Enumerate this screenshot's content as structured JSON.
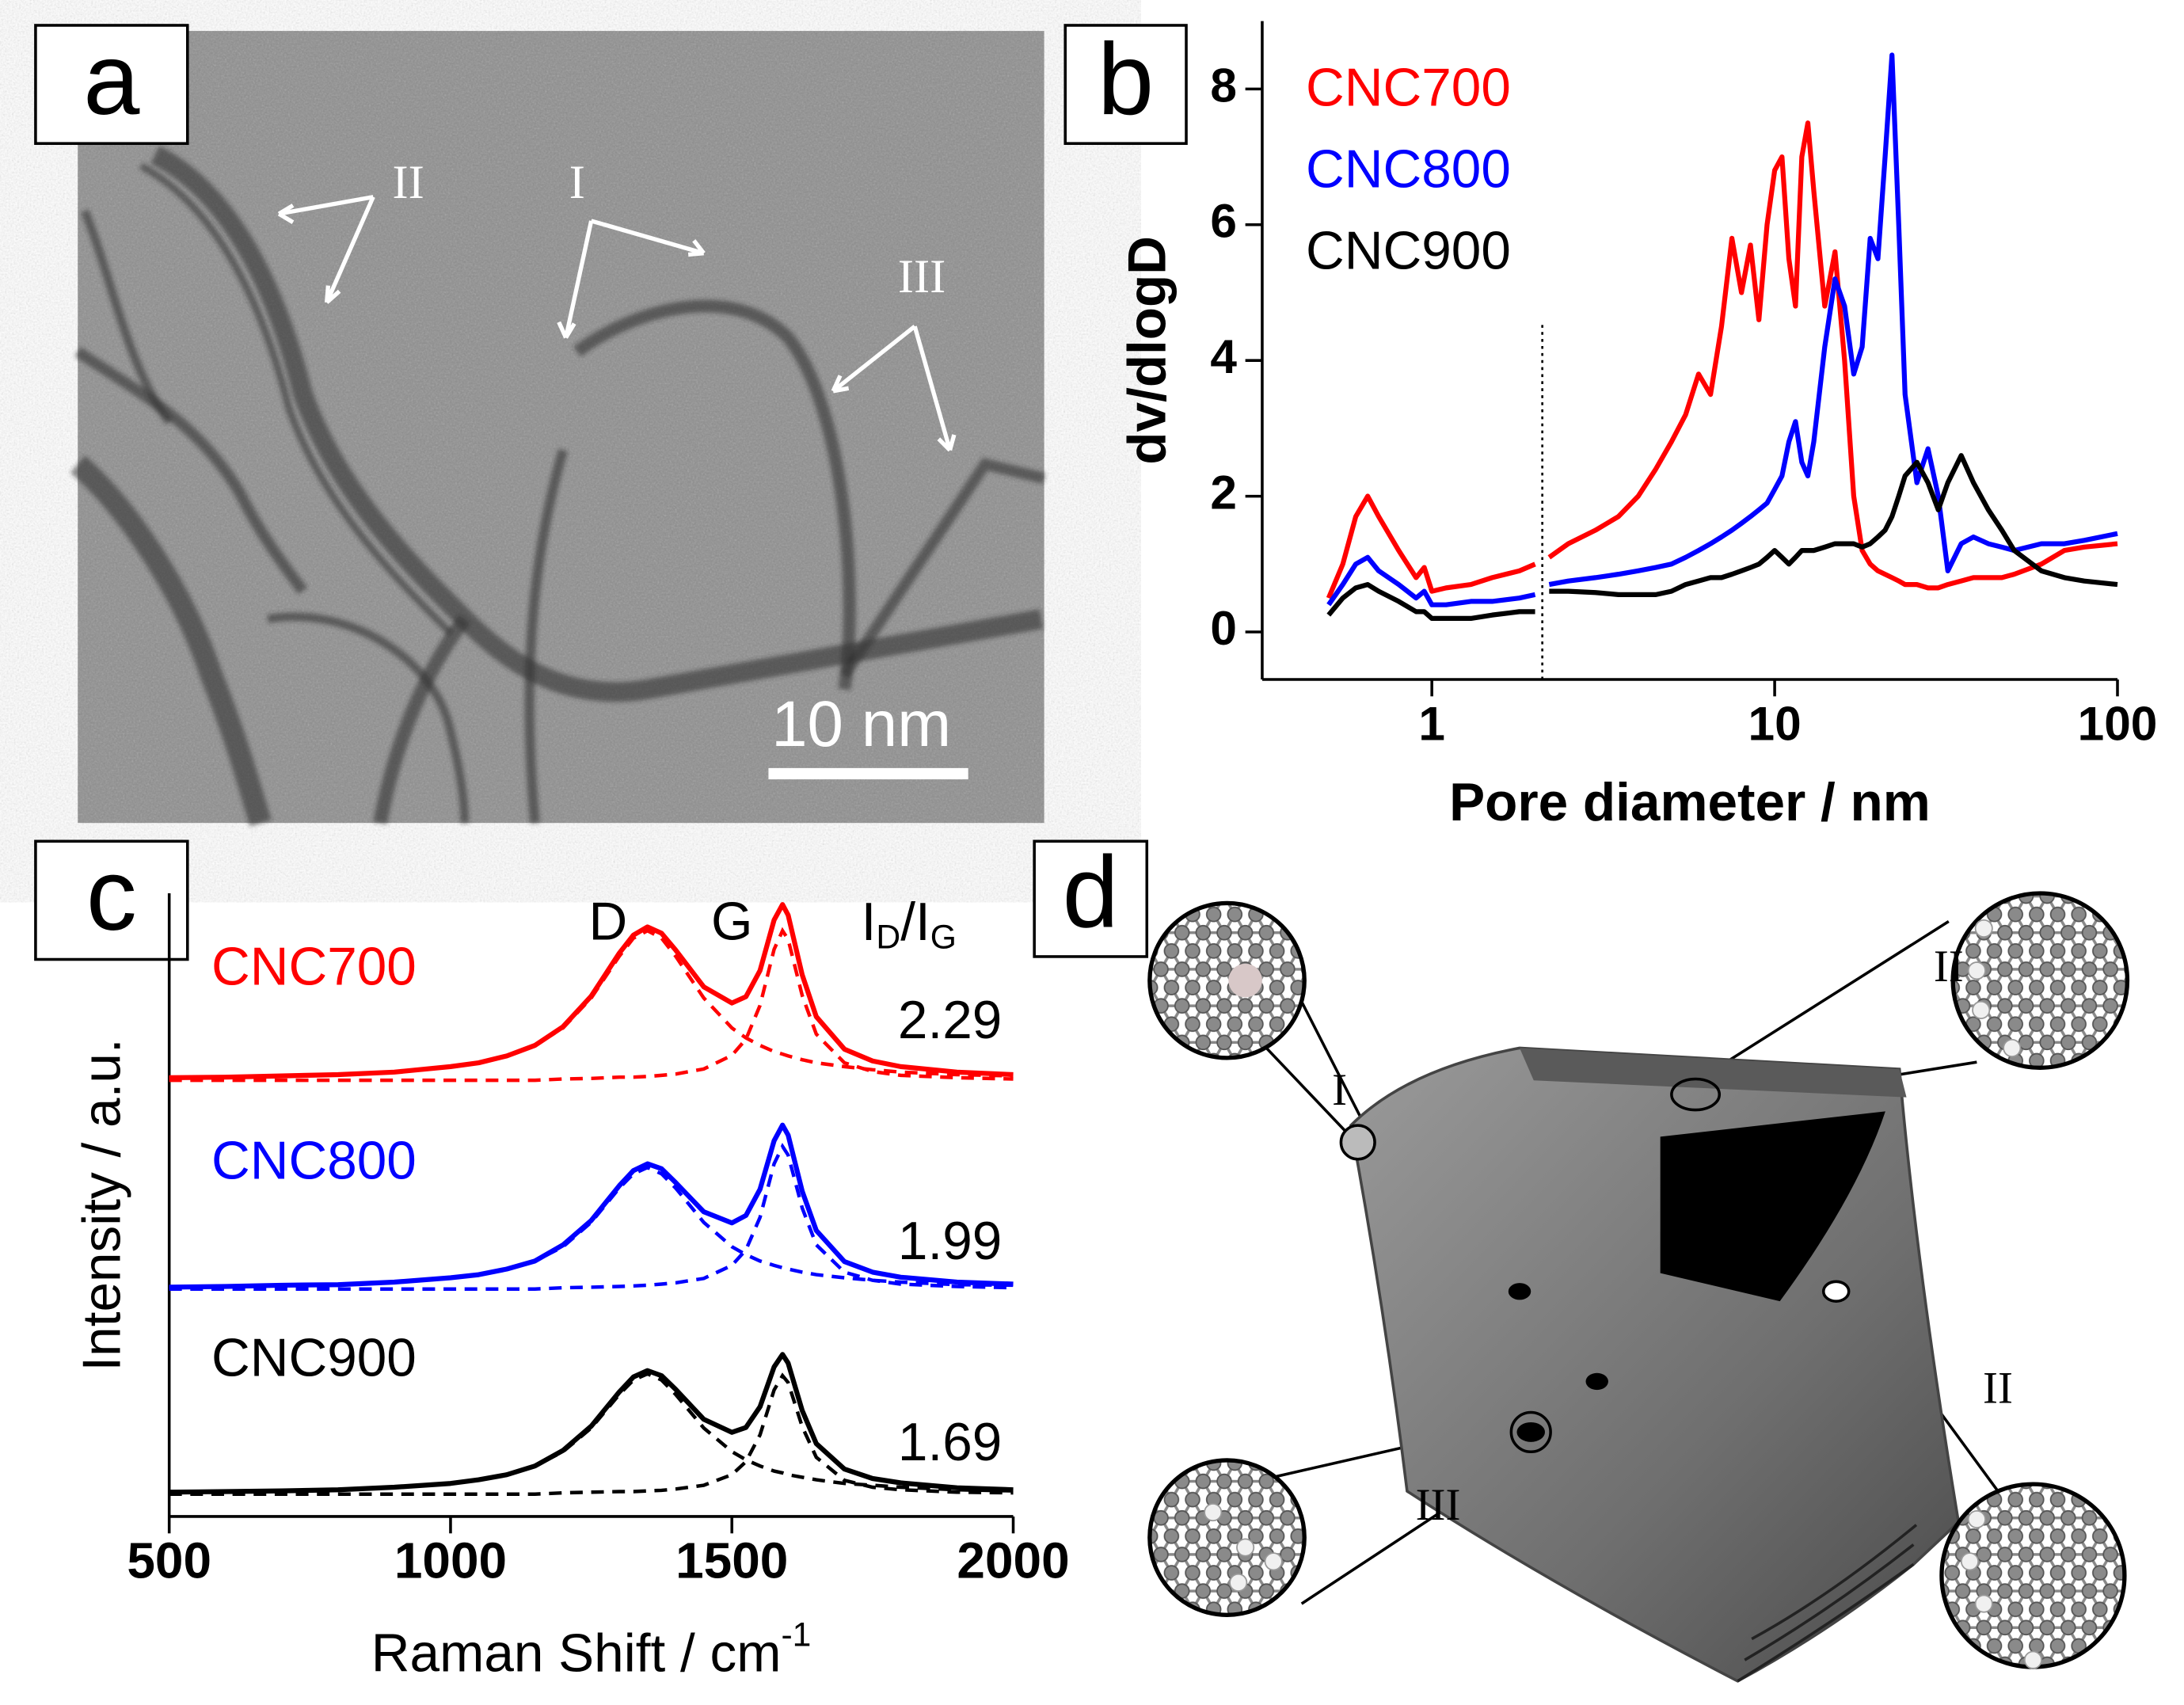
{
  "panel_a": {
    "label": "a",
    "annotations": [
      "II",
      "I",
      "III"
    ],
    "scale_bar": "10 nm"
  },
  "chart_data": [
    {
      "type": "line",
      "panel_label": "b",
      "xlabel": "Pore diameter / nm",
      "ylabel": "dv/dlogD",
      "xscale": "log",
      "xlim": [
        0.32,
        100
      ],
      "xticks": [
        1,
        10,
        100
      ],
      "ylim": [
        -0.7,
        9
      ],
      "yticks": [
        0,
        2,
        4,
        6,
        8
      ],
      "grid": false,
      "legend": "upper left",
      "reference_line": {
        "x": 2.1
      },
      "x": [
        0.5,
        0.55,
        0.6,
        0.65,
        0.7,
        0.8,
        0.9,
        0.95,
        1.0,
        1.1,
        1.3,
        1.5,
        1.8,
        2.0,
        2.1,
        2.2,
        2.5,
        3,
        3.5,
        4,
        4.5,
        5,
        5.5,
        6,
        6.5,
        7,
        7.5,
        8,
        8.5,
        9,
        9.5,
        10,
        10.5,
        11,
        11.5,
        12,
        12.5,
        13,
        14,
        15,
        16,
        17,
        18,
        19,
        20,
        21,
        22,
        23,
        24,
        26,
        28,
        30,
        32,
        35,
        38,
        42,
        46,
        50,
        60,
        70,
        80,
        100
      ],
      "series": [
        {
          "name": "CNC700",
          "color": "#ff0000",
          "values": [
            0.5,
            1.0,
            1.7,
            2.0,
            1.7,
            1.2,
            0.8,
            0.95,
            0.6,
            0.65,
            0.7,
            0.8,
            0.9,
            1.0,
            null,
            1.1,
            1.3,
            1.5,
            1.7,
            2.0,
            2.4,
            2.8,
            3.2,
            3.8,
            3.5,
            4.5,
            5.8,
            5.0,
            5.7,
            4.6,
            6.0,
            6.8,
            7.0,
            5.5,
            4.8,
            7.0,
            7.5,
            6.5,
            4.8,
            5.6,
            4.0,
            2.0,
            1.2,
            1.0,
            0.9,
            0.85,
            0.8,
            0.75,
            0.7,
            0.7,
            0.65,
            0.65,
            0.7,
            0.75,
            0.8,
            0.8,
            0.8,
            0.85,
            1.0,
            1.2,
            1.25,
            1.3
          ]
        },
        {
          "name": "CNC800",
          "color": "#0000ff",
          "values": [
            0.4,
            0.7,
            1.0,
            1.1,
            0.9,
            0.7,
            0.5,
            0.6,
            0.4,
            0.4,
            0.45,
            0.45,
            0.5,
            0.55,
            null,
            0.7,
            0.75,
            0.8,
            0.85,
            0.9,
            0.95,
            1.0,
            1.1,
            1.2,
            1.3,
            1.4,
            1.5,
            1.6,
            1.7,
            1.8,
            1.9,
            2.1,
            2.3,
            2.8,
            3.1,
            2.5,
            2.3,
            2.8,
            4.2,
            5.2,
            4.8,
            3.8,
            4.2,
            5.8,
            5.5,
            7.0,
            8.5,
            6.0,
            3.5,
            2.2,
            2.7,
            2.0,
            0.9,
            1.3,
            1.4,
            1.3,
            1.25,
            1.2,
            1.3,
            1.3,
            1.35,
            1.45
          ]
        },
        {
          "name": "CNC900",
          "color": "#000000",
          "values": [
            0.25,
            0.5,
            0.65,
            0.7,
            0.6,
            0.45,
            0.3,
            0.3,
            0.2,
            0.2,
            0.2,
            0.25,
            0.3,
            0.3,
            null,
            0.6,
            0.6,
            0.58,
            0.55,
            0.55,
            0.55,
            0.6,
            0.7,
            0.75,
            0.8,
            0.8,
            0.85,
            0.9,
            0.95,
            1.0,
            1.1,
            1.2,
            1.1,
            1.0,
            1.1,
            1.2,
            1.2,
            1.2,
            1.25,
            1.3,
            1.3,
            1.3,
            1.25,
            1.3,
            1.4,
            1.5,
            1.7,
            2.0,
            2.3,
            2.5,
            2.2,
            1.8,
            2.2,
            2.6,
            2.2,
            1.8,
            1.5,
            1.2,
            0.9,
            0.8,
            0.75,
            0.7
          ]
        }
      ]
    },
    {
      "type": "line",
      "panel_label": "c",
      "xlabel": "Raman Shift / cm",
      "xlabel_sup": "-1",
      "ylabel": "Intensity / a.u.",
      "xlim": [
        500,
        2000
      ],
      "xticks": [
        500,
        1000,
        1500,
        2000
      ],
      "ylim": [
        0,
        10
      ],
      "grid": false,
      "peak_labels": [
        "D",
        "G"
      ],
      "ratio_label": [
        "I",
        "D",
        "/I",
        "G"
      ],
      "x": [
        500,
        600,
        700,
        800,
        900,
        1000,
        1050,
        1100,
        1150,
        1200,
        1250,
        1300,
        1325,
        1350,
        1375,
        1400,
        1450,
        1500,
        1525,
        1550,
        1575,
        1590,
        1600,
        1625,
        1650,
        1700,
        1750,
        1800,
        1900,
        2000
      ],
      "series": [
        {
          "name": "CNC700",
          "color": "#ff0000",
          "ratio": 2.29,
          "values": [
            7.04,
            7.05,
            7.07,
            7.09,
            7.13,
            7.22,
            7.28,
            7.39,
            7.56,
            7.86,
            8.35,
            9.04,
            9.33,
            9.46,
            9.36,
            9.09,
            8.5,
            8.24,
            8.34,
            8.76,
            9.57,
            9.82,
            9.65,
            8.69,
            8.02,
            7.5,
            7.31,
            7.22,
            7.13,
            7.09
          ],
          "fit_d": [
            7.04,
            7.05,
            7.07,
            7.09,
            7.13,
            7.22,
            7.28,
            7.39,
            7.56,
            7.84,
            8.32,
            8.99,
            9.28,
            9.4,
            9.28,
            8.99,
            8.32,
            7.84,
            7.68,
            7.56,
            7.46,
            7.42,
            7.39,
            7.33,
            7.28,
            7.22,
            7.17,
            7.13,
            7.09,
            7.07
          ],
          "fit_g": [
            7.0,
            7.0,
            7.0,
            7.0,
            7.0,
            7.0,
            7.0,
            7.0,
            7.0,
            7.02,
            7.03,
            7.05,
            7.05,
            7.06,
            7.08,
            7.1,
            7.18,
            7.4,
            7.66,
            8.2,
            9.1,
            9.4,
            9.26,
            8.36,
            7.74,
            7.28,
            7.14,
            7.08,
            7.04,
            7.02
          ]
        },
        {
          "name": "CNC800",
          "color": "#0000ff",
          "ratio": 1.99,
          "values": [
            3.68,
            3.69,
            3.71,
            3.72,
            3.76,
            3.83,
            3.88,
            3.97,
            4.1,
            4.36,
            4.75,
            5.31,
            5.55,
            5.66,
            5.58,
            5.36,
            4.89,
            4.71,
            4.83,
            5.25,
            6.03,
            6.28,
            6.12,
            5.22,
            4.59,
            4.09,
            3.92,
            3.84,
            3.76,
            3.73
          ],
          "fit_d": [
            3.68,
            3.69,
            3.71,
            3.72,
            3.76,
            3.83,
            3.88,
            3.97,
            4.1,
            4.33,
            4.72,
            5.27,
            5.5,
            5.6,
            5.5,
            5.27,
            4.72,
            4.33,
            4.2,
            4.1,
            4.03,
            3.99,
            3.97,
            3.92,
            3.88,
            3.83,
            3.79,
            3.76,
            3.72,
            3.71
          ],
          "fit_g": [
            3.65,
            3.65,
            3.65,
            3.65,
            3.65,
            3.65,
            3.65,
            3.65,
            3.65,
            3.67,
            3.68,
            3.69,
            3.7,
            3.71,
            3.73,
            3.75,
            3.82,
            4.03,
            4.28,
            4.8,
            5.66,
            5.94,
            5.8,
            4.95,
            4.36,
            3.92,
            3.79,
            3.73,
            3.69,
            3.67
          ]
        },
        {
          "name": "CNC900",
          "color": "#000000",
          "ratio": 1.69,
          "values": [
            0.39,
            0.4,
            0.41,
            0.43,
            0.47,
            0.53,
            0.59,
            0.67,
            0.81,
            1.06,
            1.45,
            2.0,
            2.24,
            2.34,
            2.26,
            2.04,
            1.56,
            1.35,
            1.43,
            1.76,
            2.4,
            2.6,
            2.46,
            1.7,
            1.17,
            0.76,
            0.61,
            0.54,
            0.46,
            0.43
          ],
          "fit_d": [
            0.39,
            0.4,
            0.41,
            0.43,
            0.47,
            0.53,
            0.59,
            0.67,
            0.81,
            1.04,
            1.42,
            1.96,
            2.19,
            2.29,
            2.19,
            1.96,
            1.42,
            1.04,
            0.91,
            0.81,
            0.73,
            0.7,
            0.67,
            0.63,
            0.59,
            0.53,
            0.5,
            0.47,
            0.43,
            0.41
          ],
          "fit_g": [
            0.36,
            0.36,
            0.36,
            0.36,
            0.36,
            0.36,
            0.36,
            0.36,
            0.36,
            0.38,
            0.39,
            0.4,
            0.4,
            0.41,
            0.42,
            0.44,
            0.5,
            0.67,
            0.88,
            1.31,
            2.03,
            2.26,
            2.15,
            1.44,
            0.95,
            0.58,
            0.47,
            0.43,
            0.39,
            0.38
          ]
        }
      ]
    }
  ],
  "panel_d": {
    "label": "d",
    "annotations": [
      "I",
      "II",
      "II",
      "III"
    ]
  }
}
